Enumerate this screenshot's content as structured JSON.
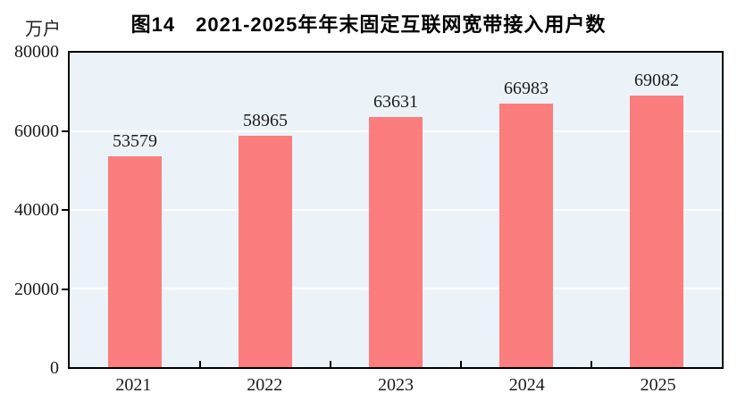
{
  "title": "图14　2021-2025年年末固定互联网宽带接入用户数",
  "unit_label": "万户",
  "colors": {
    "bar": "#FC7D7D",
    "plot_background": "#ECF3F8",
    "gridline": "#FFFFFF",
    "axis": "#000000",
    "text": "#1C1C1C"
  },
  "chart_data": {
    "type": "bar",
    "title": "图14　2021-2025年年末固定互联网宽带接入用户数",
    "categories": [
      "2021",
      "2022",
      "2023",
      "2024",
      "2025"
    ],
    "values": [
      53579,
      58965,
      63631,
      66983,
      69082
    ],
    "xlabel": "",
    "ylabel": "万户",
    "ylim": [
      0,
      80000
    ],
    "yticks": [
      0,
      20000,
      40000,
      60000,
      80000
    ],
    "grid": true,
    "gridline_color": "white",
    "data_labels": true,
    "legend": "none"
  }
}
